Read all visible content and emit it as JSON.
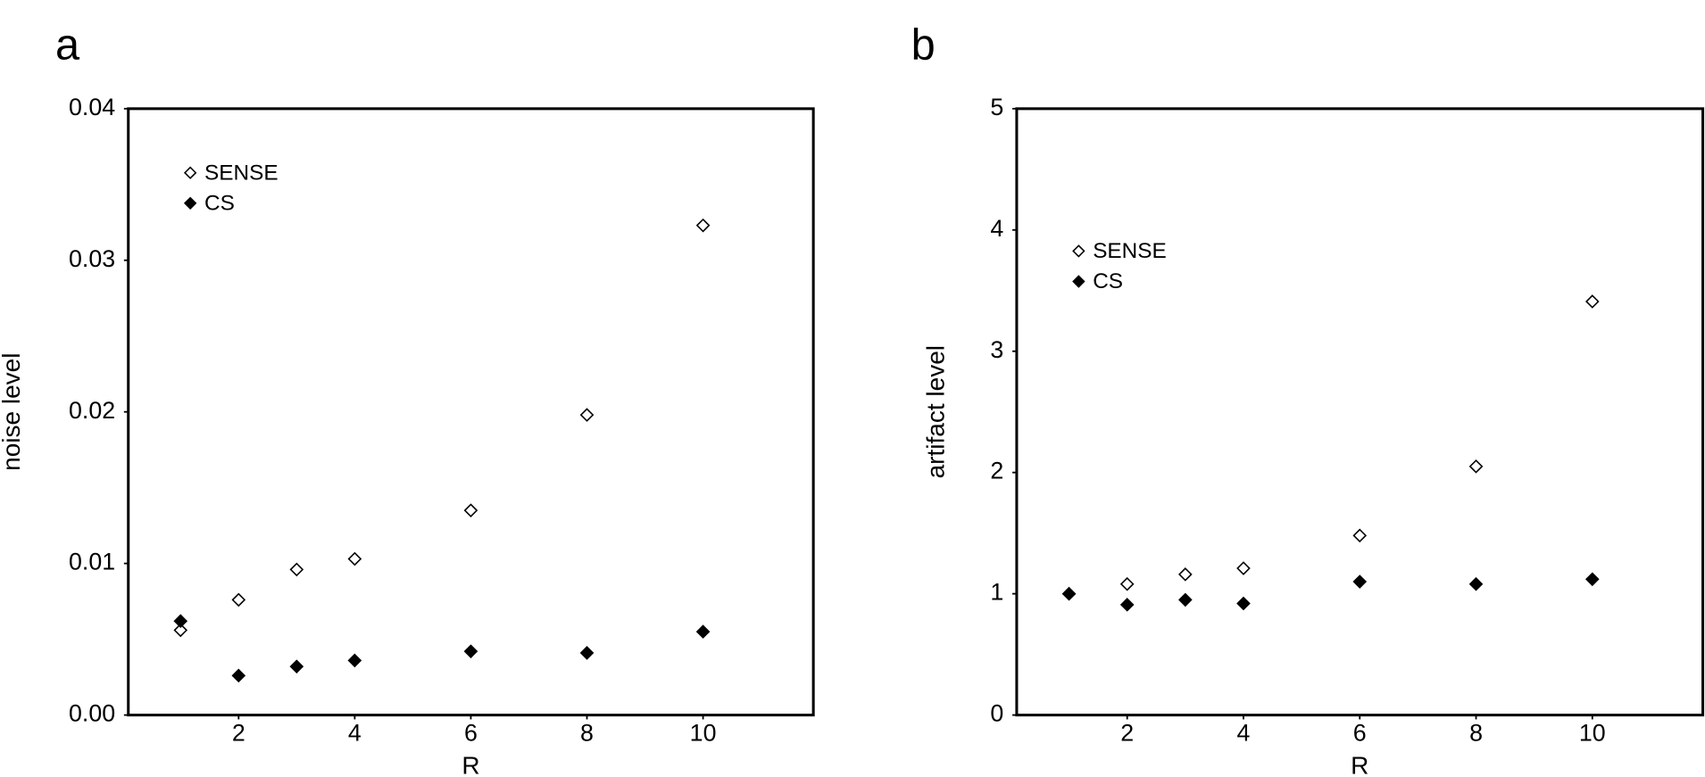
{
  "chart_data": [
    {
      "type": "scatter",
      "panel_label": "a",
      "x_label": "R",
      "y_label": "noise level",
      "x": [
        1,
        2,
        3,
        4,
        6,
        8,
        10
      ],
      "series": [
        {
          "name": "SENSE",
          "color": "#000000",
          "filled": false,
          "values": [
            0.0056,
            0.0076,
            0.0096,
            0.0103,
            0.0135,
            0.0198,
            0.0323
          ]
        },
        {
          "name": "CS",
          "color": "#000000",
          "filled": true,
          "values": [
            0.0062,
            0.0026,
            0.0032,
            0.0036,
            0.0042,
            0.0041,
            0.0055
          ]
        }
      ],
      "xlim": [
        0.1,
        11.9
      ],
      "xticks": [
        2,
        4,
        6,
        8,
        10
      ],
      "ylim": [
        0,
        0.04
      ],
      "yticks": [
        {
          "value": 0,
          "label": "0.00"
        },
        0.01,
        0.02,
        0.03,
        0.04
      ],
      "grid": false,
      "legend": "upper left"
    },
    {
      "type": "scatter",
      "panel_label": "b",
      "x_label": "R",
      "y_label": "artifact level",
      "x": [
        1,
        2,
        3,
        4,
        6,
        8,
        10
      ],
      "series": [
        {
          "name": "SENSE",
          "color": "#000000",
          "filled": false,
          "values": [
            1.0,
            1.08,
            1.16,
            1.21,
            1.48,
            2.05,
            3.41
          ]
        },
        {
          "name": "CS",
          "color": "#000000",
          "filled": true,
          "values": [
            1.0,
            0.91,
            0.95,
            0.92,
            1.1,
            1.08,
            1.12
          ]
        }
      ],
      "xlim": [
        0.1,
        11.9
      ],
      "xticks": [
        2,
        4,
        6,
        8,
        10
      ],
      "ylim": [
        0,
        5
      ],
      "yticks": [
        0,
        1,
        2,
        3,
        4,
        5
      ],
      "grid": false,
      "legend": "upper left"
    }
  ]
}
